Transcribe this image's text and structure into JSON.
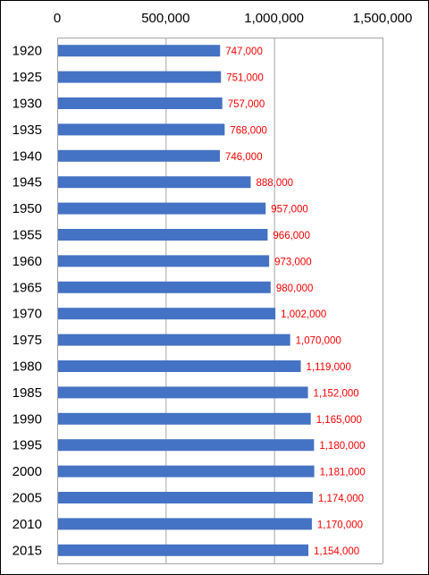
{
  "chart_data": {
    "type": "bar",
    "orientation": "horizontal",
    "categories": [
      "1920",
      "1925",
      "1930",
      "1935",
      "1940",
      "1945",
      "1950",
      "1955",
      "1960",
      "1965",
      "1970",
      "1975",
      "1980",
      "1985",
      "1990",
      "1995",
      "2000",
      "2005",
      "2010",
      "2015"
    ],
    "values": [
      747000,
      751000,
      757000,
      768000,
      746000,
      888000,
      957000,
      966000,
      973000,
      980000,
      1002000,
      1070000,
      1119000,
      1152000,
      1165000,
      1180000,
      1181000,
      1174000,
      1170000,
      1154000
    ],
    "data_labels": [
      "747,000",
      "751,000",
      "757,000",
      "768,000",
      "746,000",
      "888,000",
      "957,000",
      "966,000",
      "973,000",
      "980,000",
      "1,002,000",
      "1,070,000",
      "1,119,000",
      "1,152,000",
      "1,165,000",
      "1,180,000",
      "1,181,000",
      "1,174,000",
      "1,170,000",
      "1,154,000"
    ],
    "x_ticks": [
      0,
      500000,
      1000000,
      1500000
    ],
    "x_tick_labels": [
      "0",
      "500,000",
      "1,000,000",
      "1,500,000"
    ],
    "xlim": [
      0,
      1500000
    ],
    "x_axis_position": "top",
    "grid": true,
    "title": "",
    "xlabel": "",
    "ylabel": "",
    "colors": {
      "bar": "#4472C4",
      "data_label": "#FF0000",
      "grid": "#A6A6A6",
      "axis": "#A6A6A6"
    }
  }
}
